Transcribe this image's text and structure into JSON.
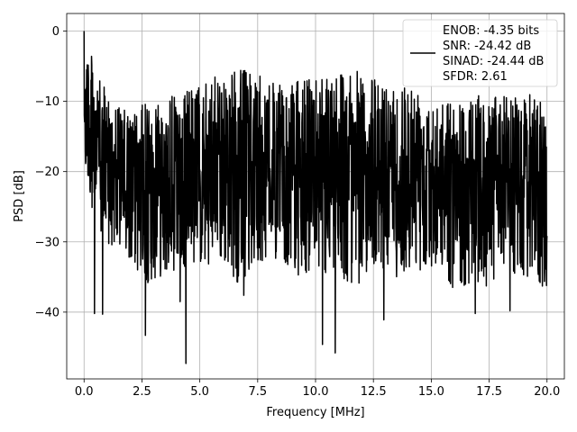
{
  "chart_data": {
    "type": "line",
    "title": "",
    "xlabel": "Frequency [MHz]",
    "ylabel": "PSD [dB]",
    "xlim": [
      -0.75,
      20.75
    ],
    "ylim": [
      -49.5,
      2.5
    ],
    "xticks": [
      0.0,
      2.5,
      5.0,
      7.5,
      10.0,
      12.5,
      15.0,
      17.5,
      20.0
    ],
    "xtick_labels": [
      "0.0",
      "2.5",
      "5.0",
      "7.5",
      "10.0",
      "12.5",
      "15.0",
      "17.5",
      "20.0"
    ],
    "yticks": [
      0,
      -10,
      -20,
      -30,
      -40
    ],
    "ytick_labels": [
      "0",
      "−10",
      "−20",
      "−30",
      "−40"
    ],
    "grid": true,
    "legend_position": "top-right",
    "line_color": "#000000",
    "series": [
      {
        "name": "ENOB: -4.35 bits\nSNR: -24.42 dB\nSINAD: -24.44 dB\nSFDR: 2.61",
        "legend_lines": [
          "ENOB: -4.35 bits",
          "SNR: -24.42 dB",
          "SINAD: -24.44 dB",
          "SFDR: 2.61"
        ],
        "x_range": [
          0.0,
          20.0
        ],
        "envelope_max": [
          0,
          -7,
          -10,
          -12,
          -10,
          -9,
          -9,
          -8,
          -7,
          -6,
          -5,
          -6,
          -7,
          -8,
          -7,
          -6,
          -5,
          -5,
          -6,
          -7,
          -7,
          -7,
          -8,
          -9,
          -10,
          -9,
          -9,
          -9,
          -9,
          -9,
          -10
        ],
        "envelope_min": [
          -20,
          -30,
          -31,
          -33,
          -36,
          -35,
          -34,
          -33,
          -34,
          -33,
          -36,
          -34,
          -32,
          -33,
          -35,
          -34,
          -35,
          -36,
          -36,
          -33,
          -35,
          -35,
          -34,
          -33,
          -37,
          -36,
          -37,
          -34,
          -35,
          -36,
          -37
        ],
        "notable_dips": [
          {
            "x": 0.45,
            "y": -40.2
          },
          {
            "x": 0.8,
            "y": -40.3
          },
          {
            "x": 2.65,
            "y": -43.3
          },
          {
            "x": 4.4,
            "y": -47.3
          },
          {
            "x": 4.15,
            "y": -38.5
          },
          {
            "x": 6.9,
            "y": -37.6
          },
          {
            "x": 10.3,
            "y": -44.6
          },
          {
            "x": 10.85,
            "y": -45.8
          },
          {
            "x": 12.95,
            "y": -41.1
          },
          {
            "x": 16.9,
            "y": -40.2
          },
          {
            "x": 18.4,
            "y": -39.8
          }
        ]
      }
    ]
  }
}
